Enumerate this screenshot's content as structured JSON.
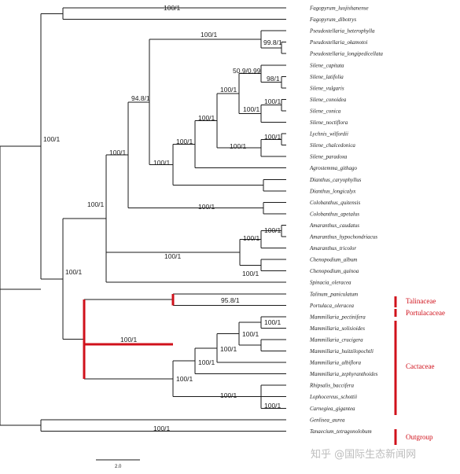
{
  "taxa": [
    "Fagopyrum_luojishanense",
    "Fagopyrum_dibotrys",
    "Pseudostellaria_heterophylla",
    "Pseudostellaria_okamotoi",
    "Pseudostellaria_longipedicellata",
    "Silene_capitata",
    "Silene_latifolia",
    "Silene_vulgaris",
    "Silene_conoidea",
    "Silene_conica",
    "Silene_noctiflora",
    "Lychnis_wilfordii",
    "Silene_chalcedonica",
    "Silene_paradoxa",
    "Agrostemma_githago",
    "Dianthus_caryophyllus",
    "Dianthus_longicalyx",
    "Colobanthus_quitensis",
    "Colobanthus_apetalus",
    "Amaranthus_caudatus",
    "Amaranthus_hypochondriacus",
    "Amaranthus_tricolor",
    "Chenopodium_album",
    "Chenopodium_quinoa",
    "Spinacia_oleracea",
    "Talinum_paniculatum",
    "Portulaca_oleracea",
    "Mammillaria_pectinifera",
    "Mammillaria_solisioides",
    "Mammillaria_crucigera",
    "Mammillaria_huitzilopochtli",
    "Mammillaria_albiflora",
    "Mammillaria_zephyranthoides",
    "Rhipsalis_baccifera",
    "Lophocereus_schottii",
    "Carnegiea_gigantea",
    "Genlisea_aurea",
    "Tanaecium_tetragonolobum"
  ],
  "supports": {
    "fagopyrum": "100/1",
    "pseudo_main": "100/1",
    "pseudo_inner": "99.8/1",
    "silene_top": "50.9/0.99",
    "silene_latvul": "98/1",
    "silene_a": "100/1",
    "silene_conica": "100/1",
    "silene_b": "100/1",
    "silene_c": "100/1",
    "lychnis": "100/1",
    "silene_d": "100/1",
    "agrostemma": "100/1",
    "pseudo_silene": "94.8/1",
    "dianthus": "100/1",
    "caryo_core": "100/1",
    "colobanthus": "100/1",
    "caryo_all": "100/1",
    "amaranthus_a": "100/1",
    "amaranthus_b": "100/1",
    "chenopodium": "100/1",
    "chenopodium_b": "100/1",
    "amaranth_fam": "100/1",
    "core_a": "100/1",
    "talinum": "95.8/1",
    "mamm_a": "100/1",
    "mamm_b": "100/1",
    "mamm_c": "100/1",
    "mamm_d": "100/1",
    "cact_rhip": "100/1",
    "cact_loph": "100/1",
    "cactaceae": "100/1",
    "portulacineae": "100/1",
    "ingroup": "100/1",
    "outgroup": "100/1"
  },
  "families": {
    "talinaceae": "Talinaceae",
    "portulacaceae": "Portulacaceae",
    "cactaceae": "Cactaceae",
    "outgroup": "Outgroup"
  },
  "scale_bar": {
    "label": "2.0"
  },
  "watermark": "知乎 @国际生态新闻网",
  "colors": {
    "highlight": "#d0111b",
    "branch": "#1a1a1a"
  }
}
